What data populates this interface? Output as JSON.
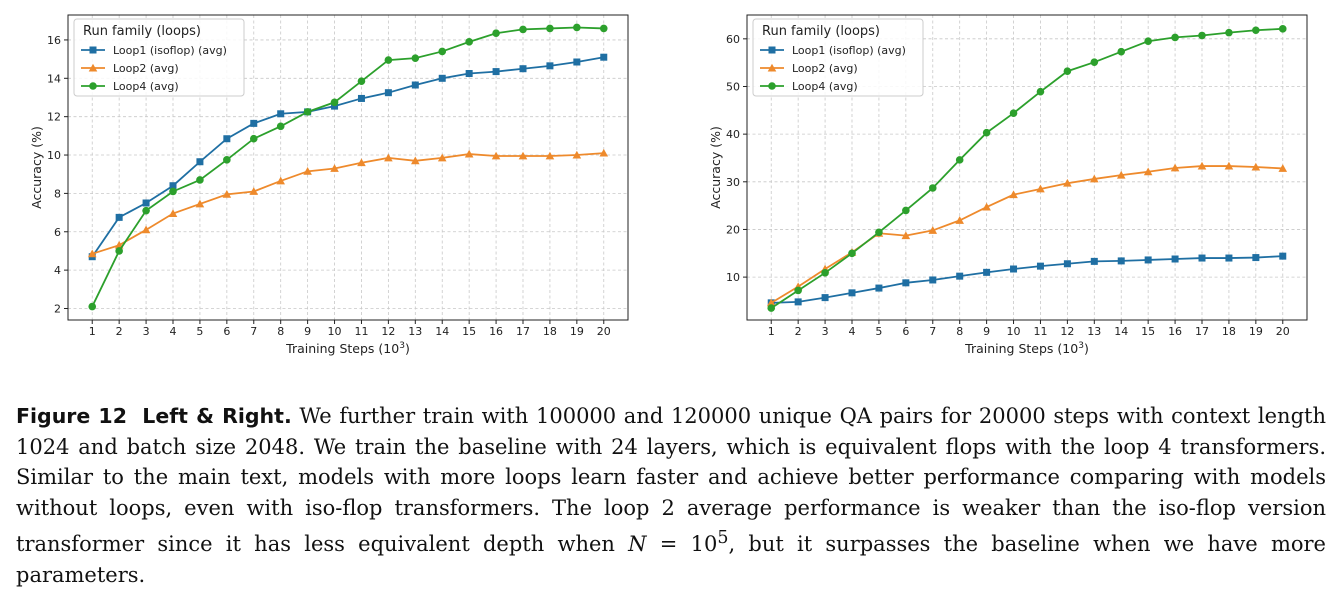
{
  "chart_data": [
    {
      "type": "line",
      "panel": "left",
      "xlabel": "Training Steps (10",
      "xlabel_sup": "3",
      "xlabel_end": ")",
      "ylabel": "Accuracy (%)",
      "x": [
        1,
        2,
        3,
        4,
        5,
        6,
        7,
        8,
        9,
        10,
        11,
        12,
        13,
        14,
        15,
        16,
        17,
        18,
        19,
        20
      ],
      "xlim": [
        0.1,
        20.9
      ],
      "ylim": [
        1.4,
        17.3
      ],
      "yticks": [
        2,
        4,
        6,
        8,
        10,
        12,
        14,
        16
      ],
      "grid": true,
      "legend": {
        "title": "Run family (loops)",
        "placement": "top-left"
      },
      "series": [
        {
          "name": "Loop1 (isoflop) (avg)",
          "color": "#1f6fa3",
          "marker": "square",
          "values": [
            4.7,
            6.75,
            7.5,
            8.4,
            9.65,
            10.85,
            11.65,
            12.15,
            12.25,
            12.55,
            12.95,
            13.25,
            13.65,
            14.0,
            14.25,
            14.35,
            14.5,
            14.65,
            14.85,
            15.1
          ]
        },
        {
          "name": "Loop2 (avg)",
          "color": "#ee8a2c",
          "marker": "triangle",
          "values": [
            4.85,
            5.3,
            6.1,
            6.95,
            7.45,
            7.95,
            8.1,
            8.65,
            9.15,
            9.3,
            9.6,
            9.85,
            9.7,
            9.85,
            10.05,
            9.95,
            9.95,
            9.95,
            10.0,
            10.1
          ]
        },
        {
          "name": "Loop4 (avg)",
          "color": "#2ca02c",
          "marker": "circle",
          "values": [
            2.1,
            5.0,
            7.1,
            8.1,
            8.7,
            9.75,
            10.85,
            11.5,
            12.25,
            12.75,
            13.85,
            14.95,
            15.05,
            15.4,
            15.9,
            16.35,
            16.55,
            16.6,
            16.65,
            16.6
          ]
        }
      ]
    },
    {
      "type": "line",
      "panel": "right",
      "xlabel": "Training Steps (10",
      "xlabel_sup": "3",
      "xlabel_end": ")",
      "ylabel": "Accuracy (%)",
      "x": [
        1,
        2,
        3,
        4,
        5,
        6,
        7,
        8,
        9,
        10,
        11,
        12,
        13,
        14,
        15,
        16,
        17,
        18,
        19,
        20
      ],
      "xlim": [
        0.1,
        20.9
      ],
      "ylim": [
        1.0,
        65.0
      ],
      "yticks": [
        10,
        20,
        30,
        40,
        50,
        60
      ],
      "grid": true,
      "legend": {
        "title": "Run family (loops)",
        "placement": "top-left"
      },
      "series": [
        {
          "name": "Loop1 (isoflop) (avg)",
          "color": "#1f6fa3",
          "marker": "square",
          "values": [
            4.6,
            4.8,
            5.7,
            6.7,
            7.7,
            8.8,
            9.4,
            10.2,
            11.0,
            11.7,
            12.3,
            12.8,
            13.3,
            13.4,
            13.6,
            13.8,
            14.0,
            14.0,
            14.1,
            14.4
          ]
        },
        {
          "name": "Loop2 (avg)",
          "color": "#ee8a2c",
          "marker": "triangle",
          "values": [
            4.6,
            8.0,
            11.7,
            15.2,
            19.2,
            18.7,
            19.8,
            21.9,
            24.7,
            27.3,
            28.5,
            29.7,
            30.6,
            31.4,
            32.1,
            32.9,
            33.3,
            33.3,
            33.1,
            32.8
          ]
        },
        {
          "name": "Loop4 (avg)",
          "color": "#2ca02c",
          "marker": "circle",
          "values": [
            3.5,
            7.2,
            10.9,
            15.0,
            19.4,
            24.0,
            28.7,
            34.6,
            40.3,
            44.4,
            48.9,
            53.2,
            55.1,
            57.3,
            59.5,
            60.3,
            60.7,
            61.3,
            61.8,
            62.1
          ]
        }
      ]
    }
  ],
  "caption": {
    "figure_label": "Figure 12",
    "figure_title": "Left & Right.",
    "body_1": "We further train with 100000 and 120000 unique QA pairs for 20000 steps with context length 1024 and batch size 2048. We train the baseline with 24 layers, which is equivalent flops with the loop 4 transformers. Similar to the main text, models with more loops learn faster and achieve better performance comparing with models without loops, even with iso-flop transformers. The loop 2 average performance is weaker than the iso-flop version transformer since it has less equivalent depth when ",
    "math_var": "N",
    "math_eq": " = 10",
    "math_exp": "5",
    "body_2": ", but it surpasses the baseline when we have more parameters."
  }
}
